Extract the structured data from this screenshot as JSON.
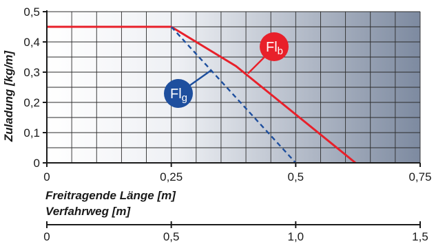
{
  "chart_data": {
    "type": "line",
    "xlabel": "Freitragende Länge [m]",
    "xlabel2": "Verfahrweg [m]",
    "ylabel": "Zuladung [kg/m]",
    "xlim": [
      0,
      0.75
    ],
    "ylim": [
      0,
      0.5
    ],
    "x2lim": [
      0,
      1.5
    ],
    "xticks": [
      "0",
      "0,25",
      "0,5",
      "0,75"
    ],
    "yticks": [
      "0",
      "0,1",
      "0,2",
      "0,3",
      "0,4",
      "0,5"
    ],
    "x2ticks": [
      "0",
      "0,5",
      "1,0",
      "1,5"
    ],
    "xtick_values": [
      0,
      0.25,
      0.5,
      0.75
    ],
    "ytick_values": [
      0,
      0.1,
      0.2,
      0.3,
      0.4,
      0.5
    ],
    "x2tick_values": [
      0,
      0.5,
      1.0,
      1.5
    ],
    "grid": true,
    "series": [
      {
        "key": "b",
        "label_main": "Fl",
        "label_sub": "b",
        "color": "#e8202a",
        "style": "solid",
        "x": [
          0,
          0.25,
          0.38,
          0.62
        ],
        "y": [
          0.45,
          0.45,
          0.32,
          0
        ]
      },
      {
        "key": "g",
        "label_main": "Fl",
        "label_sub": "g",
        "color": "#1e4f9e",
        "style": "dashed",
        "x": [
          0.25,
          0.5
        ],
        "y": [
          0.45,
          0
        ]
      }
    ]
  }
}
